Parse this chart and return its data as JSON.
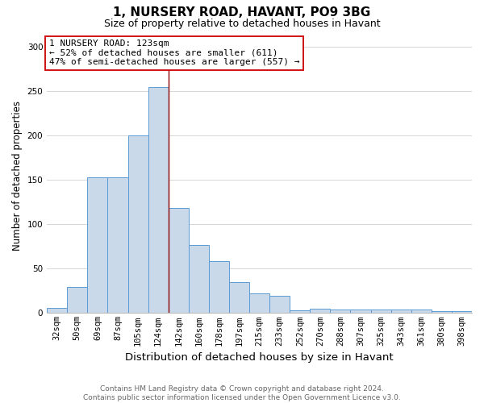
{
  "title1": "1, NURSERY ROAD, HAVANT, PO9 3BG",
  "title2": "Size of property relative to detached houses in Havant",
  "xlabel": "Distribution of detached houses by size in Havant",
  "ylabel": "Number of detached properties",
  "categories": [
    "32sqm",
    "50sqm",
    "69sqm",
    "87sqm",
    "105sqm",
    "124sqm",
    "142sqm",
    "160sqm",
    "178sqm",
    "197sqm",
    "215sqm",
    "233sqm",
    "252sqm",
    "270sqm",
    "288sqm",
    "307sqm",
    "325sqm",
    "343sqm",
    "361sqm",
    "380sqm",
    "398sqm"
  ],
  "values": [
    6,
    29,
    153,
    153,
    200,
    255,
    119,
    77,
    59,
    35,
    22,
    19,
    3,
    5,
    4,
    4,
    4,
    4,
    4,
    2,
    2
  ],
  "bar_color": "#c9d9ea",
  "bar_edge_color": "#5b9bd5",
  "ylim": [
    0,
    310
  ],
  "yticks": [
    0,
    50,
    100,
    150,
    200,
    250,
    300
  ],
  "ref_line_x": 5.5,
  "reference_label": "1 NURSERY ROAD: 123sqm",
  "stat1": "← 52% of detached houses are smaller (611)",
  "stat2": "47% of semi-detached houses are larger (557) →",
  "box_edge_color": "#cc0000",
  "footnote1": "Contains HM Land Registry data © Crown copyright and database right 2024.",
  "footnote2": "Contains public sector information licensed under the Open Government Licence v3.0.",
  "title1_fontsize": 11,
  "title2_fontsize": 9,
  "xlabel_fontsize": 9.5,
  "ylabel_fontsize": 8.5,
  "annot_fontsize": 8,
  "tick_fontsize": 7.5,
  "footnote_fontsize": 6.5
}
